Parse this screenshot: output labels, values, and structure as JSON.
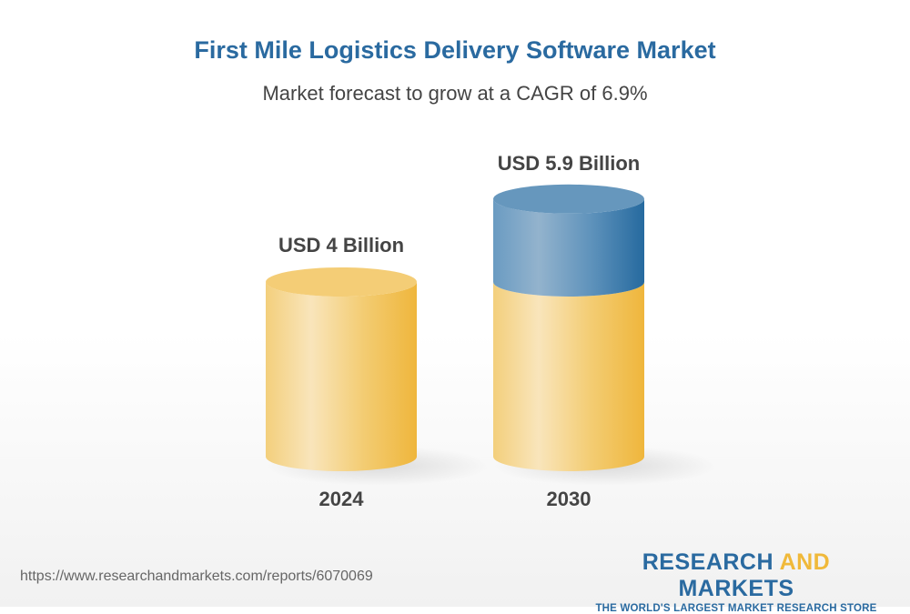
{
  "title": "First Mile Logistics Delivery Software Market",
  "subtitle": "Market forecast to grow at a CAGR of 6.9%",
  "chart_data": {
    "type": "bar",
    "style": "3d-cylinder",
    "categories": [
      "2024",
      "2030"
    ],
    "values": [
      4,
      5.9
    ],
    "unit": "USD Billion",
    "data_labels": [
      "USD 4 Billion",
      "USD 5.9 Billion"
    ],
    "colors": {
      "base": "#f0b93a",
      "growth": "#2a6aa0"
    },
    "grid": false
  },
  "footer": {
    "url": "https://www.researchandmarkets.com/reports/6070069",
    "logo_part1": "RESEARCH ",
    "logo_part2": "AND",
    "logo_part3": " MARKETS",
    "logo_tagline": "THE WORLD'S LARGEST MARKET RESEARCH STORE"
  }
}
